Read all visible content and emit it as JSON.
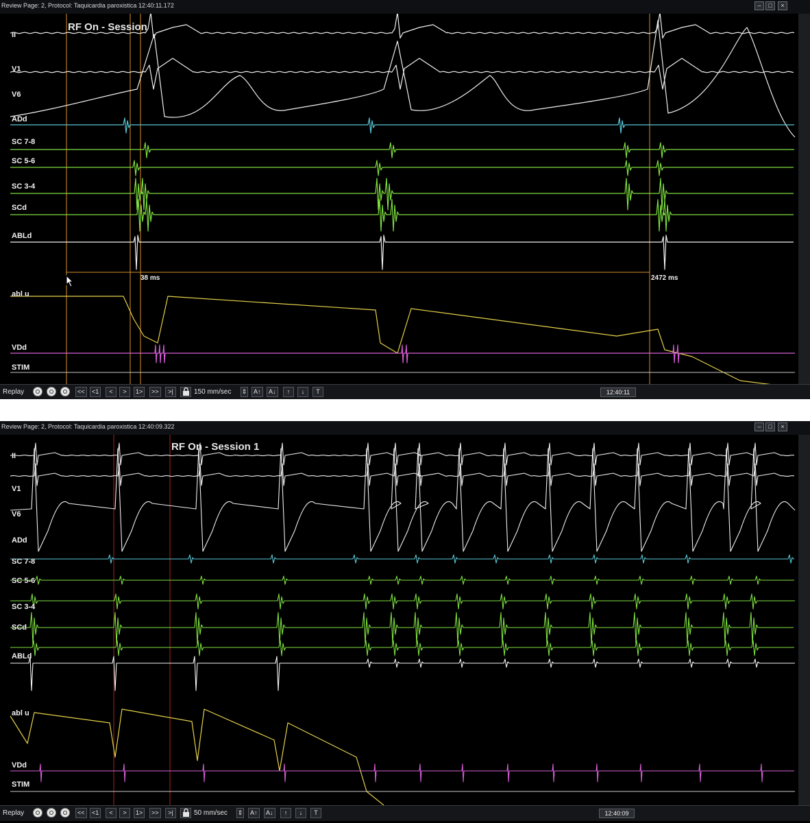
{
  "top": {
    "window_title": "Review Page: 2, Protocol: Taquicardia paroxistica   12:40:11.172",
    "session_title": "RF On - Session",
    "channels": [
      "II",
      "V1",
      "V6",
      "ADd",
      "SC 7-8",
      "SC 5-6",
      "SC 3-4",
      "SCd",
      "ABLd",
      "abl u",
      "VDd",
      "STIM"
    ],
    "measure_left": "38 ms",
    "measure_right": "2472 ms",
    "speed": "150 mm/sec",
    "clock": "12:40:11"
  },
  "bottom": {
    "window_title": "Review Page: 2, Protocol: Taquicardia paroxistica   12:40:09.322",
    "session_title": "RF On - Session 1",
    "channels": [
      "II",
      "V1",
      "V6",
      "ADd",
      "SC 7-8",
      "SC 5-6",
      "SC 3-4",
      "SCd",
      "ABLd",
      "abl u",
      "VDd",
      "STIM"
    ],
    "speed": "50 mm/sec",
    "clock": "12:40:09"
  },
  "toolbar": {
    "replay_label": "Replay",
    "btn_rewind": "<<",
    "btn_step_back": "<1",
    "btn_prev": "<",
    "btn_next": ">",
    "btn_step_fwd": "1>",
    "btn_fast_fwd": ">>",
    "btn_end": ">|",
    "btn_font_up": "A↑",
    "btn_font_down": "A↓",
    "btn_up": "↑",
    "btn_down": "↓",
    "btn_t": "T",
    "window_min": "–",
    "window_max": "□",
    "window_close": "×"
  },
  "colors": {
    "ecg": "#f0f0f0",
    "add": "#58c8d8",
    "cs": "#7fe040",
    "abld": "#f4f4f4",
    "ablu": "#e6d24a",
    "vdd": "#d85fd8",
    "stim": "#c9c9c9",
    "cursor": "#d8902a",
    "redcursor": "#b02020"
  },
  "icons": [
    "lock-icon",
    "window-minimize-icon",
    "window-maximize-icon",
    "window-close-icon",
    "mouse-pointer-icon"
  ]
}
